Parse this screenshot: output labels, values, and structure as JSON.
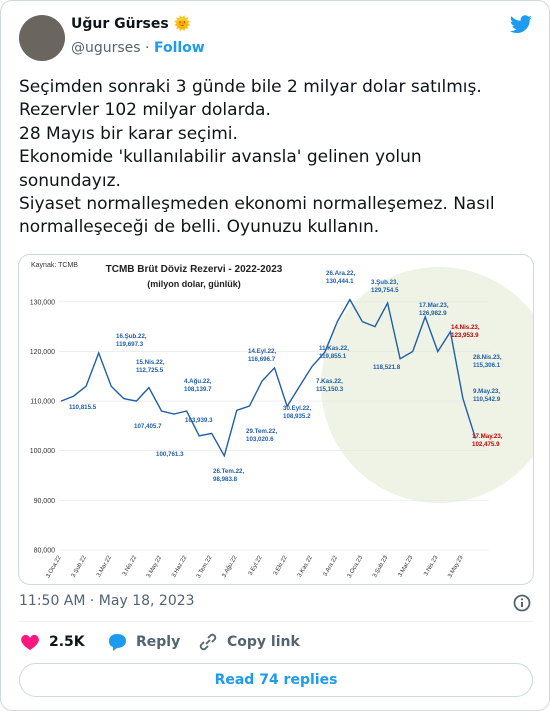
{
  "tweet": {
    "name": "Uğur Gürses 🌞",
    "handle": "@ugurses",
    "separator": "·",
    "follow": "Follow",
    "text": [
      "Seçimden sonraki 3 günde bile 2 milyar dolar satılmış.",
      "Rezervler 102 milyar dolarda.",
      "28 Mayıs bir karar seçimi.",
      "Ekonomide 'kullanılabilir avansla' gelinen yolun",
      "sonundayız.",
      "Siyaset normalleşmeden ekonomi normalleşemez. Nasıl",
      "normalleşeceği de belli. Oyunuzu kullanın."
    ],
    "timestamp": "11:50 AM · May 18, 2023",
    "likes": "2.5K",
    "reply": "Reply",
    "copy_link": "Copy link",
    "read_replies": "Read 74 replies"
  },
  "chart_data": {
    "type": "line",
    "title": "TCMB Brüt Döviz Rezervi - 2022-2023",
    "subtitle": "(milyon dolar, günlük)",
    "source": "Kaynak: TCMB",
    "color": "#1f5fa8",
    "categories": [
      "3.Oca.22",
      null,
      "3.Şub.22",
      null,
      "3.Mar.22",
      null,
      "3.Nis.22",
      null,
      "3.May.22",
      null,
      "3.Haz.22",
      null,
      "3.Tem.22",
      null,
      "3.Ağu.22",
      null,
      "3.Eyl.22",
      null,
      "3.Eki.22",
      null,
      "3.Kas.22",
      null,
      "3.Ara.22",
      null,
      "3.Oca.23",
      null,
      "3.Şub.23",
      null,
      "3.Mar.23",
      null,
      "3.Nis.23",
      null,
      "3.May.23",
      null
    ],
    "values": [
      110000,
      111000,
      113000,
      119697,
      113000,
      110500,
      110000,
      112725,
      108000,
      107405,
      108000,
      103000,
      103500,
      98984,
      108140,
      109000,
      114000,
      116697,
      108935,
      113000,
      117000,
      119855,
      126000,
      130444,
      126000,
      125000,
      129755,
      118522,
      120000,
      126983,
      120000,
      123954,
      110543,
      102476
    ],
    "ylim": [
      80000,
      135000
    ],
    "yticks": [
      {
        "value": 80000,
        "label": "80,000"
      },
      {
        "value": 90000,
        "label": "90,000"
      },
      {
        "value": 100000,
        "label": "100,000"
      },
      {
        "value": 110000,
        "label": "110,000"
      },
      {
        "value": 120000,
        "label": "120,000"
      },
      {
        "value": 130000,
        "label": "130,000"
      }
    ],
    "annotations": [
      {
        "lines": [
          "110,815.5"
        ],
        "color": "#1f5fa8"
      },
      {
        "lines": [
          "16.Şub.22,",
          "119,697.3"
        ],
        "color": "#1f5fa8"
      },
      {
        "lines": [
          "15.Nis.22,",
          "112,725.5"
        ],
        "color": "#1f5fa8"
      },
      {
        "lines": [
          "107,405.7"
        ],
        "color": "#1f5fa8"
      },
      {
        "lines": [
          "100,761.3"
        ],
        "color": "#1f5fa8"
      },
      {
        "lines": [
          "4.Ağu.22,",
          "108,139.7"
        ],
        "color": "#1f5fa8"
      },
      {
        "lines": [
          "103,939.3"
        ],
        "color": "#1f5fa8"
      },
      {
        "lines": [
          "26.Tem.22,",
          "98,983.8"
        ],
        "color": "#1f5fa8"
      },
      {
        "lines": [
          "29.Tem.22,",
          "103,020.6"
        ],
        "color": "#1f5fa8"
      },
      {
        "lines": [
          "14.Eyl.22,",
          "116,696.7"
        ],
        "color": "#1f5fa8"
      },
      {
        "lines": [
          "30.Eyl.22,",
          "108,935.2"
        ],
        "color": "#1f5fa8"
      },
      {
        "lines": [
          "11.Kas.22,",
          "119,855.1"
        ],
        "color": "#1f5fa8"
      },
      {
        "lines": [
          "7.Kas.22,",
          "115,150.3"
        ],
        "color": "#1f5fa8"
      },
      {
        "lines": [
          "26.Ara.22,",
          "130,444.1"
        ],
        "color": "#1f5fa8"
      },
      {
        "lines": [
          "3.Şub.23,",
          "129,754.5"
        ],
        "color": "#1f5fa8"
      },
      {
        "lines": [
          "118,521.8"
        ],
        "color": "#1f5fa8"
      },
      {
        "lines": [
          "17.Mar.23,",
          "126,982.9"
        ],
        "color": "#1f5fa8"
      },
      {
        "lines": [
          "14.Nis.23,",
          "123,953.9"
        ],
        "color": "#c00000"
      },
      {
        "lines": [
          "28.Nis.23,",
          "115,306.1"
        ],
        "color": "#1f5fa8"
      },
      {
        "lines": [
          "9.May.23,",
          "110,542.9"
        ],
        "color": "#1f5fa8"
      },
      {
        "lines": [
          "17.May.23,",
          "102,475.9"
        ],
        "color": "#c00000"
      }
    ]
  }
}
